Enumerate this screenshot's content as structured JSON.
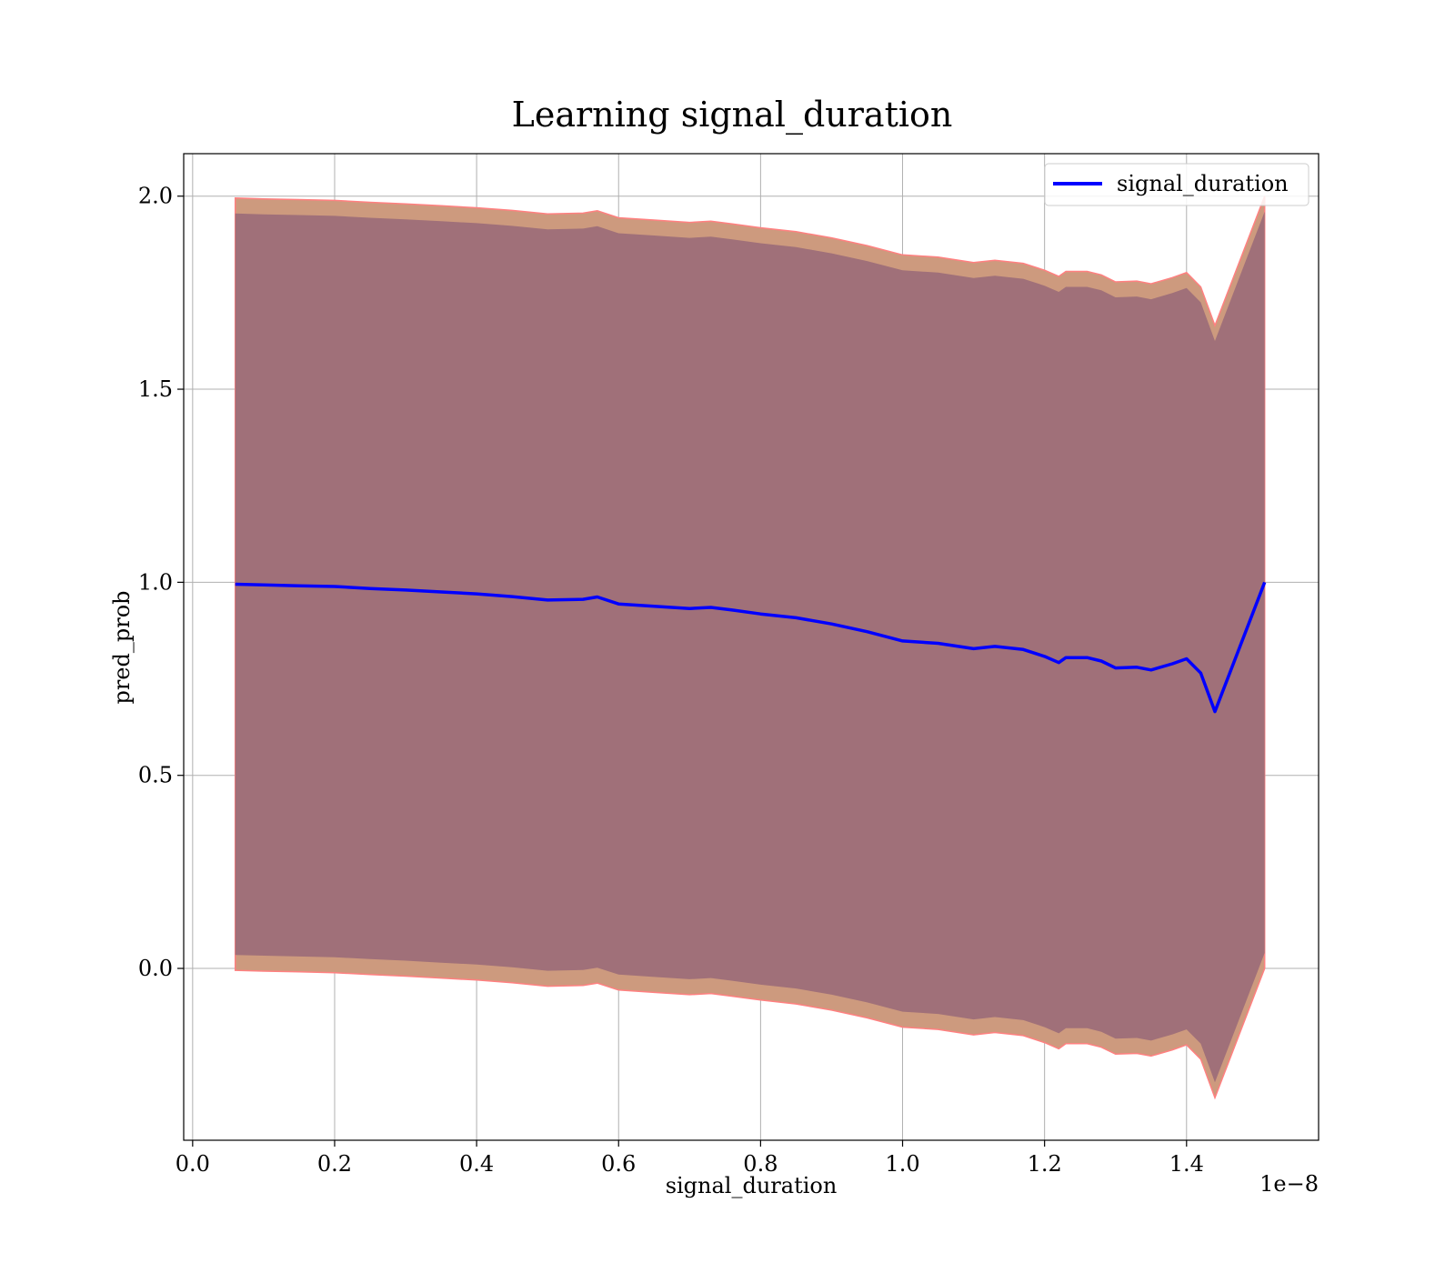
{
  "chart_data": {
    "type": "area",
    "title": "Learning signal_duration",
    "xlabel": "signal_duration",
    "ylabel": "pred_prob",
    "x_offset_label": "1e−8",
    "x_scale": 1e-08,
    "xlim": [
      -0.0126,
      1.586
    ],
    "ylim": [
      -0.445,
      2.11
    ],
    "xticks": [
      0.0,
      0.2,
      0.4,
      0.6,
      0.8,
      1.0,
      1.2,
      1.4
    ],
    "xtick_labels": [
      "0.0",
      "0.2",
      "0.4",
      "0.6",
      "0.8",
      "1.0",
      "1.2",
      "1.4"
    ],
    "yticks": [
      0.0,
      0.5,
      1.0,
      1.5,
      2.0
    ],
    "ytick_labels": [
      "0.0",
      "0.5",
      "1.0",
      "1.5",
      "2.0"
    ],
    "grid": true,
    "legend_position": "upper right",
    "colors": {
      "line": "#0000ff",
      "outer_band": "#cd9a7e",
      "outer_band_edge": "#ff8080",
      "inner_band": "#a07079",
      "grid": "#b0b0b0"
    },
    "x": [
      0.06,
      0.1,
      0.15,
      0.2,
      0.25,
      0.3,
      0.35,
      0.4,
      0.45,
      0.5,
      0.55,
      0.57,
      0.6,
      0.65,
      0.7,
      0.73,
      0.76,
      0.8,
      0.85,
      0.9,
      0.95,
      1.0,
      1.05,
      1.1,
      1.13,
      1.17,
      1.2,
      1.22,
      1.23,
      1.26,
      1.28,
      1.3,
      1.33,
      1.35,
      1.38,
      1.4,
      1.42,
      1.44,
      1.51
    ],
    "series": [
      {
        "name": "signal_duration",
        "values": [
          0.995,
          0.993,
          0.991,
          0.989,
          0.984,
          0.98,
          0.975,
          0.97,
          0.963,
          0.954,
          0.956,
          0.962,
          0.944,
          0.938,
          0.932,
          0.935,
          0.928,
          0.918,
          0.908,
          0.892,
          0.872,
          0.848,
          0.842,
          0.828,
          0.834,
          0.826,
          0.808,
          0.792,
          0.805,
          0.805,
          0.796,
          0.778,
          0.78,
          0.773,
          0.789,
          0.802,
          0.765,
          0.665,
          1.0
        ]
      }
    ],
    "bands": [
      {
        "role": "outer",
        "upper": [
          1.995,
          1.993,
          1.991,
          1.989,
          1.984,
          1.98,
          1.975,
          1.97,
          1.963,
          1.954,
          1.956,
          1.962,
          1.944,
          1.938,
          1.932,
          1.935,
          1.928,
          1.918,
          1.908,
          1.892,
          1.872,
          1.848,
          1.842,
          1.828,
          1.834,
          1.826,
          1.808,
          1.792,
          1.805,
          1.805,
          1.796,
          1.778,
          1.78,
          1.773,
          1.789,
          1.802,
          1.765,
          1.665,
          2.0
        ],
        "lower": [
          -0.005,
          -0.007,
          -0.009,
          -0.011,
          -0.016,
          -0.02,
          -0.025,
          -0.03,
          -0.037,
          -0.046,
          -0.044,
          -0.038,
          -0.056,
          -0.062,
          -0.068,
          -0.065,
          -0.072,
          -0.082,
          -0.092,
          -0.108,
          -0.128,
          -0.152,
          -0.158,
          -0.172,
          -0.166,
          -0.174,
          -0.192,
          -0.208,
          -0.195,
          -0.195,
          -0.204,
          -0.222,
          -0.22,
          -0.227,
          -0.211,
          -0.198,
          -0.235,
          -0.335,
          0.0
        ]
      },
      {
        "role": "inner",
        "upper": [
          1.955,
          1.953,
          1.951,
          1.949,
          1.944,
          1.94,
          1.935,
          1.93,
          1.923,
          1.914,
          1.916,
          1.922,
          1.904,
          1.898,
          1.892,
          1.895,
          1.888,
          1.878,
          1.868,
          1.852,
          1.832,
          1.808,
          1.802,
          1.788,
          1.794,
          1.786,
          1.768,
          1.752,
          1.765,
          1.765,
          1.756,
          1.738,
          1.74,
          1.733,
          1.749,
          1.762,
          1.725,
          1.625,
          1.96
        ],
        "lower": [
          0.035,
          0.033,
          0.031,
          0.029,
          0.024,
          0.02,
          0.015,
          0.01,
          0.003,
          -0.006,
          -0.004,
          0.002,
          -0.016,
          -0.022,
          -0.028,
          -0.025,
          -0.032,
          -0.042,
          -0.052,
          -0.068,
          -0.088,
          -0.112,
          -0.118,
          -0.132,
          -0.126,
          -0.134,
          -0.152,
          -0.168,
          -0.155,
          -0.155,
          -0.164,
          -0.182,
          -0.18,
          -0.187,
          -0.171,
          -0.158,
          -0.195,
          -0.295,
          0.04
        ]
      }
    ]
  }
}
